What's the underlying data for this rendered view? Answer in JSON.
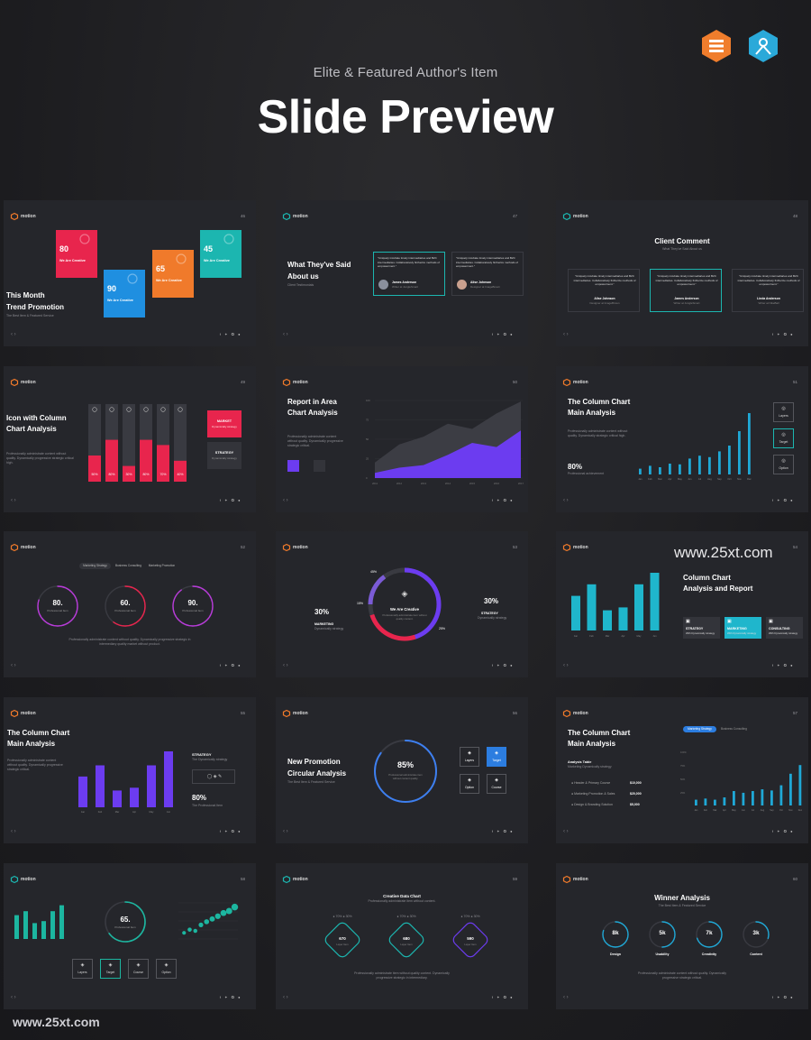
{
  "header": {
    "subtitle": "Elite & Featured Author's Item",
    "title": "Slide Preview"
  },
  "badges": {
    "left_icon": "stacked-bars-badge-icon",
    "left_color": "#f07d2c",
    "right_icon": "person-badge-icon",
    "right_color": "#2aa9d9"
  },
  "watermark": {
    "right": "www.25xt.com",
    "bottom": "www.25xt.com"
  },
  "common": {
    "brand": "motion",
    "nav_arrows": "‹  ›",
    "social_icons": "f ✦ ✪ ●"
  },
  "slides": [
    {
      "num": "46",
      "title_line1": "This Month",
      "title_line2": "Trend Promotion",
      "caption": "The Best Item & Featured Service",
      "cards": [
        {
          "value": "80",
          "label": "We Are Creative",
          "color": "#e8254d"
        },
        {
          "value": "90",
          "label": "We Are Creative",
          "color": "#1f8fe0"
        },
        {
          "value": "65",
          "label": "We Are Creative",
          "color": "#f07a2b"
        },
        {
          "value": "45",
          "label": "We Are Creative",
          "color": "#1cb6b0"
        }
      ]
    },
    {
      "num": "47",
      "title_line1": "What They've Said",
      "title_line2": "About us",
      "caption": "Client Testimonials",
      "quotes": [
        {
          "text": "Uniquely incubate timely intermediaries and B2C intermediaries. Collaboratively fintherize methods of empowerment.",
          "name": "James Anderson",
          "role": "Writer at JungleSmart"
        },
        {
          "text": "Uniquely incubate timely intermediaries and B2C intermediaries. Collaboratively fintherize methods of empowerment.",
          "name": "Alise Johnson",
          "role": "Designer at ImageBrown"
        }
      ]
    },
    {
      "num": "48",
      "title": "Client Comment",
      "caption": "What They've Said About us",
      "quotes": [
        {
          "text": "Uniquely incubate timely intermediaries and B2C intermediaries. Collaboratively fintherize methods of empowerment.",
          "name": "Alise Johnson",
          "role": "Designer at ImageBrown"
        },
        {
          "text": "Uniquely incubate timely intermediaries and B2C intermediaries. Collaboratively fintherize methods of empowerment.",
          "name": "James Anderson",
          "role": "Writer at JungleSmart"
        },
        {
          "text": "Uniquely incubate timely intermediaries and B2C intermediaries. Collaboratively fintherize methods of empowerment.",
          "name": "Linda Anderson",
          "role": "Writer at NikeBall"
        }
      ]
    },
    {
      "num": "49",
      "title_line1": "Icon with Column",
      "title_line2": "Chart Analysis",
      "caption": "Professionally administrate content without quality. Dynamically progressive strategic critical high.",
      "bar_labels": [
        "50%",
        "80%",
        "30%",
        "80%",
        "70%",
        "40%"
      ],
      "bar_values": [
        50,
        80,
        30,
        80,
        70,
        40
      ],
      "tag1": "MARKET",
      "tag1_sub": "Dynamically strategy",
      "tag2": "STRATEGY",
      "tag2_sub": "Dynamically strategy"
    },
    {
      "num": "50",
      "title_line1": "Report in Area",
      "title_line2": "Chart Analysis",
      "caption": "Professionally administrate content without quality. Dynamically progressive strategic critical.",
      "chart_data": {
        "type": "area",
        "x": [
          "2011",
          "2012",
          "2013",
          "2014",
          "2015",
          "2016",
          "2017"
        ],
        "series": [
          {
            "values": [
              30,
              65,
              80,
              105,
              95,
              125,
              148
            ]
          },
          {
            "values": [
              10,
              20,
              25,
              45,
              68,
              60,
              92
            ]
          }
        ],
        "yticks": [
          "0",
          "25",
          "50",
          "75",
          "100"
        ]
      }
    },
    {
      "num": "51",
      "title_line1": "The Column Chart",
      "title_line2": "Main Analysis",
      "caption": "Professionally administrate content without quality. Dynamically strategic critical high.",
      "stat": "80%",
      "stat_caption": "Professional achievement",
      "chart_data": {
        "type": "bar",
        "categories": [
          "Jan",
          "Feb",
          "Mar",
          "Apr",
          "May",
          "Jun",
          "Jul",
          "Aug",
          "Sep",
          "Oct",
          "Nov",
          "Dec"
        ],
        "values": [
          8,
          12,
          10,
          15,
          14,
          22,
          26,
          24,
          32,
          40,
          60,
          85
        ]
      },
      "side_buttons": [
        "Layers",
        "Target",
        "Option"
      ]
    },
    {
      "num": "52",
      "tabs": [
        "Marketing Strategy",
        "Business Consulting",
        "Marketing Promotion"
      ],
      "circles": [
        {
          "value": "80.",
          "label": "Professional Item",
          "pct": 80
        },
        {
          "value": "60.",
          "label": "Professional Item",
          "pct": 60
        },
        {
          "value": "90.",
          "label": "Professional Item",
          "pct": 90
        }
      ],
      "caption": "Professionally administrate content without quality. Dynamically progressive strategic in intermediary quality market without product."
    },
    {
      "num": "53",
      "center_title": "We Are Creative",
      "center_caption": "Professionally administrate item without quality content.",
      "left_pct": "30%",
      "left_label": "MARKETING",
      "left_sub": "Dynamically strategy",
      "right_pct": "30%",
      "right_label": "STRATEGY",
      "right_sub": "Dynamically strategy",
      "seg_labels": [
        "45%",
        "15%",
        "25%"
      ]
    },
    {
      "num": "54",
      "title_line1": "Column Chart",
      "title_line2": "Analysis and Report",
      "chart_data": {
        "type": "bar",
        "categories": [
          "Jan",
          "Feb",
          "Mar",
          "Apr",
          "May",
          "Jun"
        ],
        "values": [
          60,
          80,
          35,
          40,
          80,
          100
        ]
      },
      "tiles": [
        {
          "label": "STRATEGY",
          "sub": "With Dynamically strategy"
        },
        {
          "label": "MARKETING",
          "sub": "With Dynamically strategy"
        },
        {
          "label": "CONSULTING",
          "sub": "With Dynamically strategy"
        }
      ]
    },
    {
      "num": "55",
      "title_line1": "The Column Chart",
      "title_line2": "Main Analysis",
      "caption": "Professionally administrate content without quality. Dynamically progressive strategic critical.",
      "chart_data": {
        "type": "bar",
        "categories": [
          "Jan",
          "Feb",
          "Mar",
          "Apr",
          "May",
          "Jun"
        ],
        "values": [
          55,
          75,
          30,
          35,
          75,
          100
        ]
      },
      "side_title": "STRATEGY",
      "side_caption": "The Dynamically strategy",
      "stat": "80%",
      "stat_caption": "The Professional Item"
    },
    {
      "num": "56",
      "title_line1": "New Promotion",
      "title_line2": "Circular Analysis",
      "caption": "The Best Item & Featured Service",
      "ring_value": "85%",
      "ring_caption": "Professional administrate item without content quality.",
      "ring_pct": 85,
      "buttons": [
        "Layers",
        "Target",
        "Option",
        "Course"
      ]
    },
    {
      "num": "57",
      "title_line1": "The Column Chart",
      "title_line2": "Main Analysis",
      "tabs": [
        "Marketing Strategy",
        "Business Consulting"
      ],
      "table_title": "Analysis Table",
      "table_sub": "Marketing Dynamically strategy",
      "rows": [
        {
          "label": "Header & Primary Course",
          "value": "$10,000"
        },
        {
          "label": "Marketing Promotion & Sales",
          "value": "$20,000"
        },
        {
          "label": "Design & Branding Solution",
          "value": "$5,000"
        }
      ],
      "chart_data": {
        "type": "bar",
        "categories": [
          "Jan",
          "Feb",
          "Mar",
          "Apr",
          "May",
          "Jun",
          "Jul",
          "Aug",
          "Sep",
          "Oct",
          "Nov",
          "Dec"
        ],
        "values": [
          10,
          12,
          10,
          14,
          25,
          22,
          25,
          28,
          26,
          35,
          55,
          70
        ],
        "yticks": [
          "100%",
          "75%",
          "50%",
          "25%"
        ]
      }
    },
    {
      "num": "58",
      "bar_values": [
        60,
        70,
        40,
        45,
        70,
        85
      ],
      "ring_value": "65.",
      "ring_caption": "Professional Item",
      "ring_pct": 65,
      "scatter": [
        [
          0.5,
          20
        ],
        [
          1,
          28
        ],
        [
          1.5,
          25
        ],
        [
          2,
          40
        ],
        [
          2.5,
          48
        ],
        [
          3,
          55
        ],
        [
          3.5,
          62
        ],
        [
          4,
          70
        ],
        [
          4.5,
          75
        ],
        [
          5,
          85
        ]
      ],
      "buttons": [
        "Layers",
        "Target",
        "Course",
        "Option"
      ]
    },
    {
      "num": "59",
      "title": "Creative Data Chart",
      "caption": "Professionally administrate item without content.",
      "diamonds": [
        {
          "value": "670",
          "label": "Layer Item",
          "color": "#1cb6b0"
        },
        {
          "value": "680",
          "label": "Layer Item",
          "color": "#1cb6b0"
        },
        {
          "value": "590",
          "label": "Layer Item",
          "color": "#6c3cf0"
        }
      ],
      "legend": [
        "70%",
        "30%"
      ],
      "footer": "Professionally administrate item without quality content. Dynamically progressive strategic in intermediary."
    },
    {
      "num": "60",
      "title": "Winner Analysis",
      "caption": "The Best Item & Featured Service",
      "rings": [
        {
          "value": "8",
          "unit": "k",
          "label": "Design",
          "pct": 80
        },
        {
          "value": "5",
          "unit": "k",
          "label": "Usability",
          "pct": 50
        },
        {
          "value": "7",
          "unit": "k",
          "label": "Creativity",
          "pct": 70
        },
        {
          "value": "3",
          "unit": "k",
          "label": "Content",
          "pct": 30
        }
      ],
      "footer": "Professionally administrate content without quality. Dynamically progressive strategic critical."
    }
  ]
}
